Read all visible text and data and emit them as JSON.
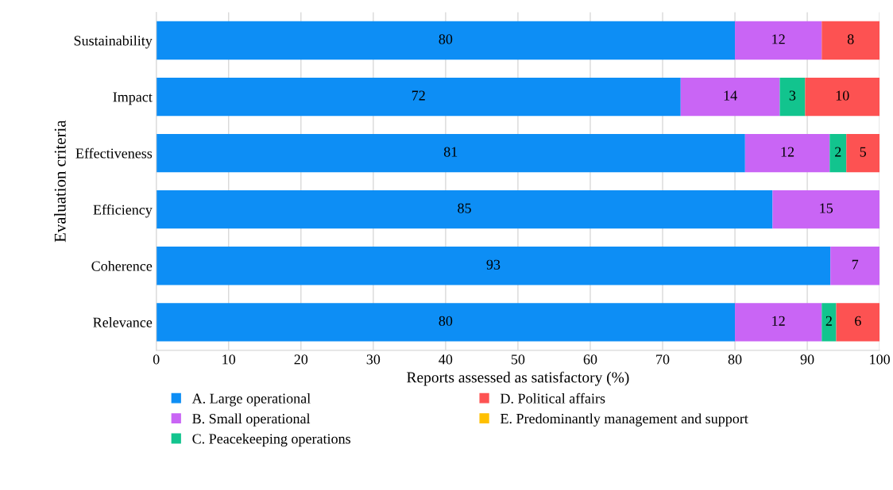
{
  "chart_data": {
    "type": "bar",
    "orientation": "horizontal",
    "stacked": true,
    "categories": [
      "Sustainability",
      "Impact",
      "Effectiveness",
      "Efficiency",
      "Coherence",
      "Relevance"
    ],
    "series": [
      {
        "name": "A. Large operational",
        "color": "#0d8ef5",
        "values": [
          80,
          72.5,
          81.4,
          85.2,
          93.2,
          80
        ],
        "value_labels": [
          "80",
          "72",
          "81",
          "85",
          "93",
          "80"
        ]
      },
      {
        "name": "B. Small operational",
        "color": "#c965f5",
        "values": [
          12,
          13.7,
          11.7,
          14.8,
          6.8,
          12
        ],
        "value_labels": [
          "12",
          "14",
          "12",
          "15",
          "7",
          "12"
        ]
      },
      {
        "name": "C. Peacekeeping operations",
        "color": "#12c48e",
        "values": [
          null,
          3.5,
          2.3,
          null,
          null,
          2
        ],
        "value_labels": [
          null,
          "3",
          "2",
          null,
          null,
          "2"
        ]
      },
      {
        "name": "D. Political affairs",
        "color": "#fd5252",
        "values": [
          8,
          10.3,
          4.6,
          null,
          null,
          6
        ],
        "value_labels": [
          "8",
          "10",
          "5",
          null,
          null,
          "6"
        ]
      },
      {
        "name": "E. Predominantly management and support",
        "color": "#ffc000",
        "values": [
          null,
          null,
          null,
          null,
          null,
          null
        ]
      }
    ],
    "xlim": [
      0,
      100
    ],
    "xticks": [
      0,
      10,
      20,
      30,
      40,
      50,
      60,
      70,
      80,
      90,
      100
    ],
    "xlabel": "Reports assessed as satisfactory (%)",
    "ylabel": "Evaluation criteria",
    "grid": "x",
    "legend": "bottom"
  }
}
